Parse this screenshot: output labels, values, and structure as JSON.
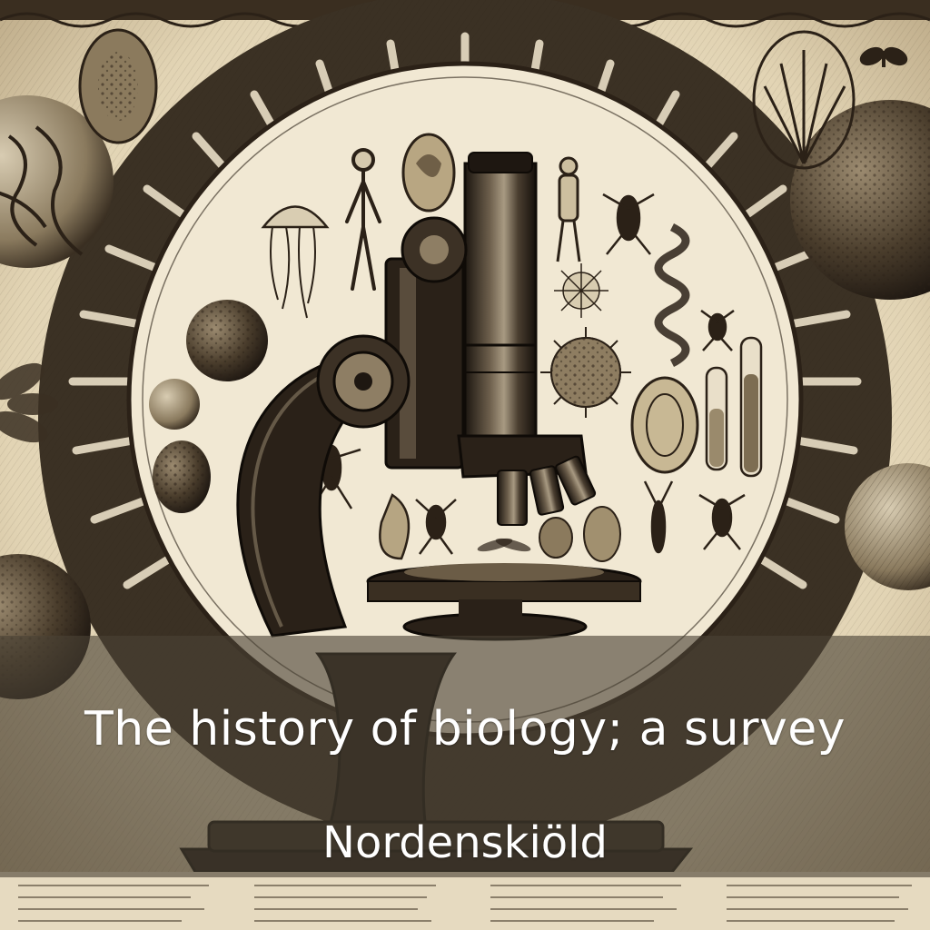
{
  "cover": {
    "title": "The history of biology; a survey",
    "author": "Nordenskiöld"
  },
  "colors": {
    "paper": "#efe4cc",
    "ink": "#2b2117",
    "sepia_mid": "#7a6a52",
    "band": "#4a4236",
    "text": "#ffffff"
  },
  "illustration": {
    "centerpiece": "antique-microscope",
    "motifs": [
      "radiolarian",
      "jellyfish",
      "skeleton",
      "insect",
      "spider",
      "test-tube",
      "sea-urchin",
      "spore",
      "butterfly",
      "plant",
      "shell",
      "crab"
    ]
  }
}
